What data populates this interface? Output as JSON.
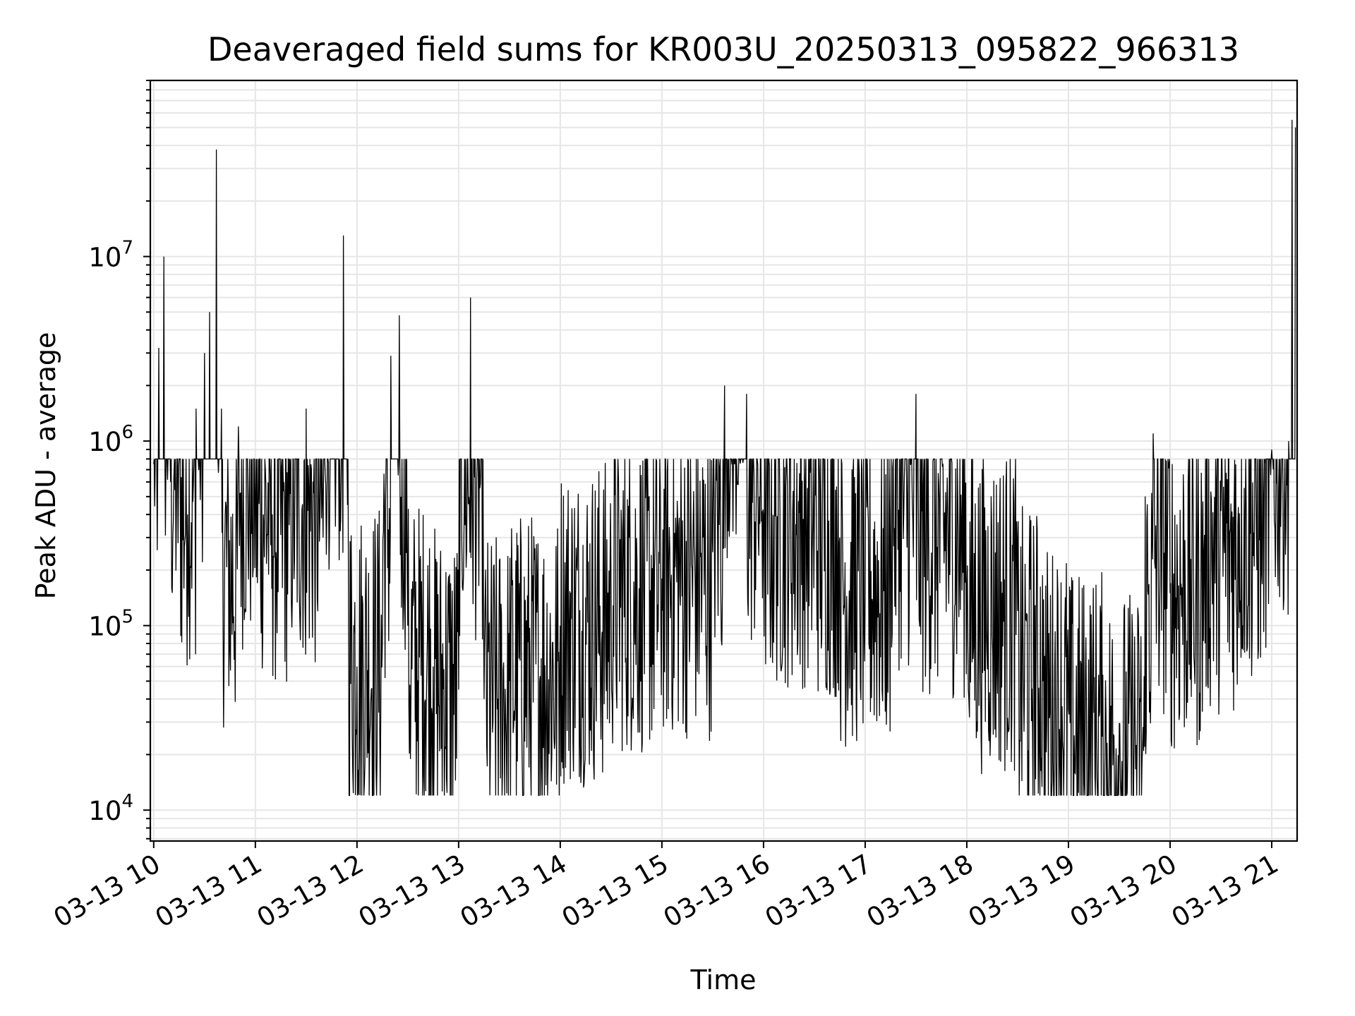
{
  "chart_data": {
    "type": "line",
    "title": "Deaveraged field sums for KR003U_20250313_095822_966313",
    "xlabel": "Time",
    "ylabel": "Peak ADU - average",
    "yscale": "log",
    "ylim": [
      6800,
      90000000
    ],
    "xlim": [
      "03-13 09:58",
      "03-13 21:15"
    ],
    "grid": "on",
    "line_color": "#000000",
    "x_ticks": [
      "03-13 10",
      "03-13 11",
      "03-13 12",
      "03-13 13",
      "03-13 14",
      "03-13 15",
      "03-13 16",
      "03-13 17",
      "03-13 18",
      "03-13 19",
      "03-13 20",
      "03-13 21"
    ],
    "y_ticks": [
      {
        "value": 10000,
        "base": "10",
        "exp": "4"
      },
      {
        "value": 100000,
        "base": "10",
        "exp": "5"
      },
      {
        "value": 1000000,
        "base": "10",
        "exp": "6"
      },
      {
        "value": 10000000,
        "base": "10",
        "exp": "7"
      }
    ],
    "series": [
      {
        "points": [
          [
            "03-13 10:00",
            750000
          ],
          [
            "03-13 10:03",
            3200000
          ],
          [
            "03-13 10:06",
            10000000
          ],
          [
            "03-13 10:10",
            600000
          ],
          [
            "03-13 10:15",
            800000
          ],
          [
            "03-13 10:20",
            400000
          ],
          [
            "03-13 10:25",
            1500000
          ],
          [
            "03-13 10:30",
            3000000
          ],
          [
            "03-13 10:33",
            5000000
          ],
          [
            "03-13 10:37",
            38000000
          ],
          [
            "03-13 10:40",
            1500000
          ],
          [
            "03-13 10:45",
            75000
          ],
          [
            "03-13 10:50",
            1200000
          ],
          [
            "03-13 11:00",
            500000
          ],
          [
            "03-13 11:10",
            400000
          ],
          [
            "03-13 11:20",
            350000
          ],
          [
            "03-13 11:30",
            1500000
          ],
          [
            "03-13 11:40",
            300000
          ],
          [
            "03-13 11:52",
            13000000
          ],
          [
            "03-13 11:55",
            150000
          ],
          [
            "03-13 12:00",
            60000
          ],
          [
            "03-13 12:15",
            80000
          ],
          [
            "03-13 12:20",
            2900000
          ],
          [
            "03-13 12:25",
            4800000
          ],
          [
            "03-13 12:30",
            100000
          ],
          [
            "03-13 12:45",
            60000
          ],
          [
            "03-13 13:00",
            45000
          ],
          [
            "03-13 13:07",
            6000000
          ],
          [
            "03-13 13:15",
            40000
          ],
          [
            "03-13 13:30",
            50000
          ],
          [
            "03-13 14:00",
            100000
          ],
          [
            "03-13 14:30",
            150000
          ],
          [
            "03-13 15:00",
            180000
          ],
          [
            "03-13 15:30",
            250000
          ],
          [
            "03-13 15:37",
            2000000
          ],
          [
            "03-13 15:50",
            1800000
          ],
          [
            "03-13 16:00",
            400000
          ],
          [
            "03-13 16:30",
            350000
          ],
          [
            "03-13 16:45",
            300000
          ],
          [
            "03-13 17:00",
            150000
          ],
          [
            "03-13 17:15",
            300000
          ],
          [
            "03-13 17:30",
            1800000
          ],
          [
            "03-13 18:00",
            150000
          ],
          [
            "03-13 18:30",
            120000
          ],
          [
            "03-13 18:45",
            50000
          ],
          [
            "03-13 19:00",
            35000
          ],
          [
            "03-13 19:20",
            25000
          ],
          [
            "03-13 19:35",
            20000
          ],
          [
            "03-13 19:45",
            22000
          ],
          [
            "03-13 19:50",
            1100000
          ],
          [
            "03-13 20:00",
            150000
          ],
          [
            "03-13 20:20",
            250000
          ],
          [
            "03-13 20:40",
            350000
          ],
          [
            "03-13 20:55",
            500000
          ],
          [
            "03-13 21:00",
            900000
          ],
          [
            "03-13 21:10",
            1000000
          ],
          [
            "03-13 21:12",
            55000000
          ],
          [
            "03-13 21:14",
            50000000
          ]
        ]
      }
    ]
  }
}
